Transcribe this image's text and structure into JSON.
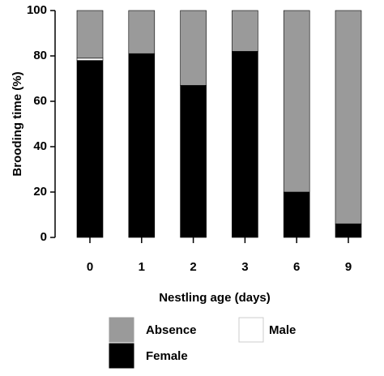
{
  "chart_data": {
    "type": "stacked_bar",
    "x_label": "Nestling age (days)",
    "y_label": "Brooding time (%)",
    "categories": [
      "0",
      "1",
      "2",
      "3",
      "6",
      "9"
    ],
    "series": [
      {
        "name": "Female",
        "color": "#000000",
        "values": [
          78,
          81,
          67,
          82,
          20,
          6
        ]
      },
      {
        "name": "Male",
        "color": "#ffffff",
        "values": [
          1,
          0,
          0,
          0,
          0,
          0
        ]
      },
      {
        "name": "Absence",
        "color": "#9a9a9a",
        "values": [
          21,
          19,
          33,
          18,
          80,
          94
        ]
      }
    ],
    "ylim": [
      0,
      100
    ],
    "yticks": [
      0,
      20,
      40,
      60,
      80,
      100
    ]
  }
}
